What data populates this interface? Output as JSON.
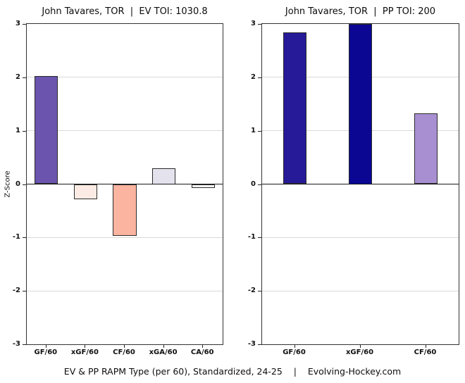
{
  "page": {
    "background": "#ffffff",
    "caption": "EV & PP RAPM Type (per 60), Standardized, 24-25    |    Evolving-Hockey.com"
  },
  "axis": {
    "ylabel": "Z-Score",
    "yticks": [
      3,
      2,
      1,
      0,
      -1,
      -2,
      -3
    ],
    "ylim": [
      -3,
      3
    ],
    "grid": true,
    "legend": "none"
  },
  "chart_data": [
    {
      "type": "bar",
      "title": "John Tavares, TOR  |  EV TOI: 1030.8",
      "categories": [
        "GF/60",
        "xGF/60",
        "CF/60",
        "xGA/60",
        "CA/60"
      ],
      "values": [
        2.02,
        -0.29,
        -0.97,
        0.3,
        -0.07
      ],
      "colors": [
        "#6a54ae",
        "#fcebe4",
        "#fbb4a0",
        "#e4e2ec",
        "#fdfdfc"
      ],
      "xlabel": "",
      "ylabel": "Z-Score",
      "ylim": [
        -3,
        3
      ],
      "grid": true,
      "bar_width_frac": 0.6
    },
    {
      "type": "bar",
      "title": "John Tavares, TOR  |  PP TOI: 200",
      "categories": [
        "GF/60",
        "xGF/60",
        "CF/60"
      ],
      "values": [
        2.84,
        3.0,
        1.32
      ],
      "colors": [
        "#261a99",
        "#0b0792",
        "#a88fd1"
      ],
      "xlabel": "",
      "ylabel": "",
      "ylim": [
        -3,
        3
      ],
      "grid": true,
      "bar_width_frac": 0.36
    }
  ],
  "style": {
    "bar_outline": "#2b2b2b",
    "gridline_color": "#d9d9d9",
    "zero_line_color": "#1a1a1a",
    "plot_border_color": "#333333",
    "text_color": "#111111"
  }
}
